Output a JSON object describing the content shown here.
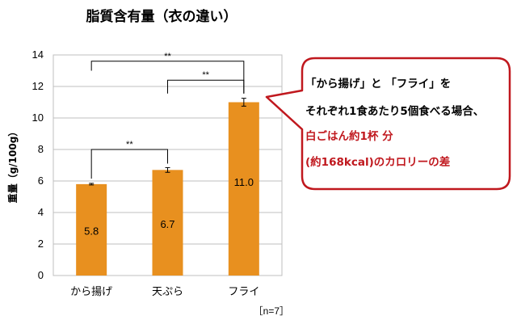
{
  "chart_data": {
    "type": "bar",
    "title": "脂質含有量（衣の違い）",
    "ylabel": "重量（g/100g）",
    "xlabel": "",
    "categories": [
      "から揚げ",
      "天ぷら",
      "フライ"
    ],
    "values": [
      5.8,
      6.7,
      11.0
    ],
    "value_labels": [
      "5.8",
      "6.7",
      "11.0"
    ],
    "error": [
      0.05,
      0.15,
      0.25
    ],
    "ylim": [
      0,
      14
    ],
    "yticks": [
      "0",
      "2",
      "4",
      "6",
      "8",
      "10",
      "12",
      "14"
    ],
    "grid": true,
    "bar_color": "#e8901f",
    "significance": [
      {
        "from": 0,
        "to": 2,
        "label": "**"
      },
      {
        "from": 1,
        "to": 2,
        "label": "**"
      },
      {
        "from": 0,
        "to": 1,
        "label": "**"
      }
    ],
    "sample_note": "［n=7］"
  },
  "callout": {
    "lines": [
      {
        "text": "「から揚げ」と 「フライ」を",
        "color": "#000000"
      },
      {
        "text": "それぞれ1食あたり5個食べる場合、",
        "color": "#000000"
      },
      {
        "text": "白ごはん約1杯 分",
        "color": "#c0181e"
      },
      {
        "text": "(約168kcal)のカロリーの差",
        "color": "#c0181e"
      }
    ],
    "border_color": "#c0181e"
  }
}
